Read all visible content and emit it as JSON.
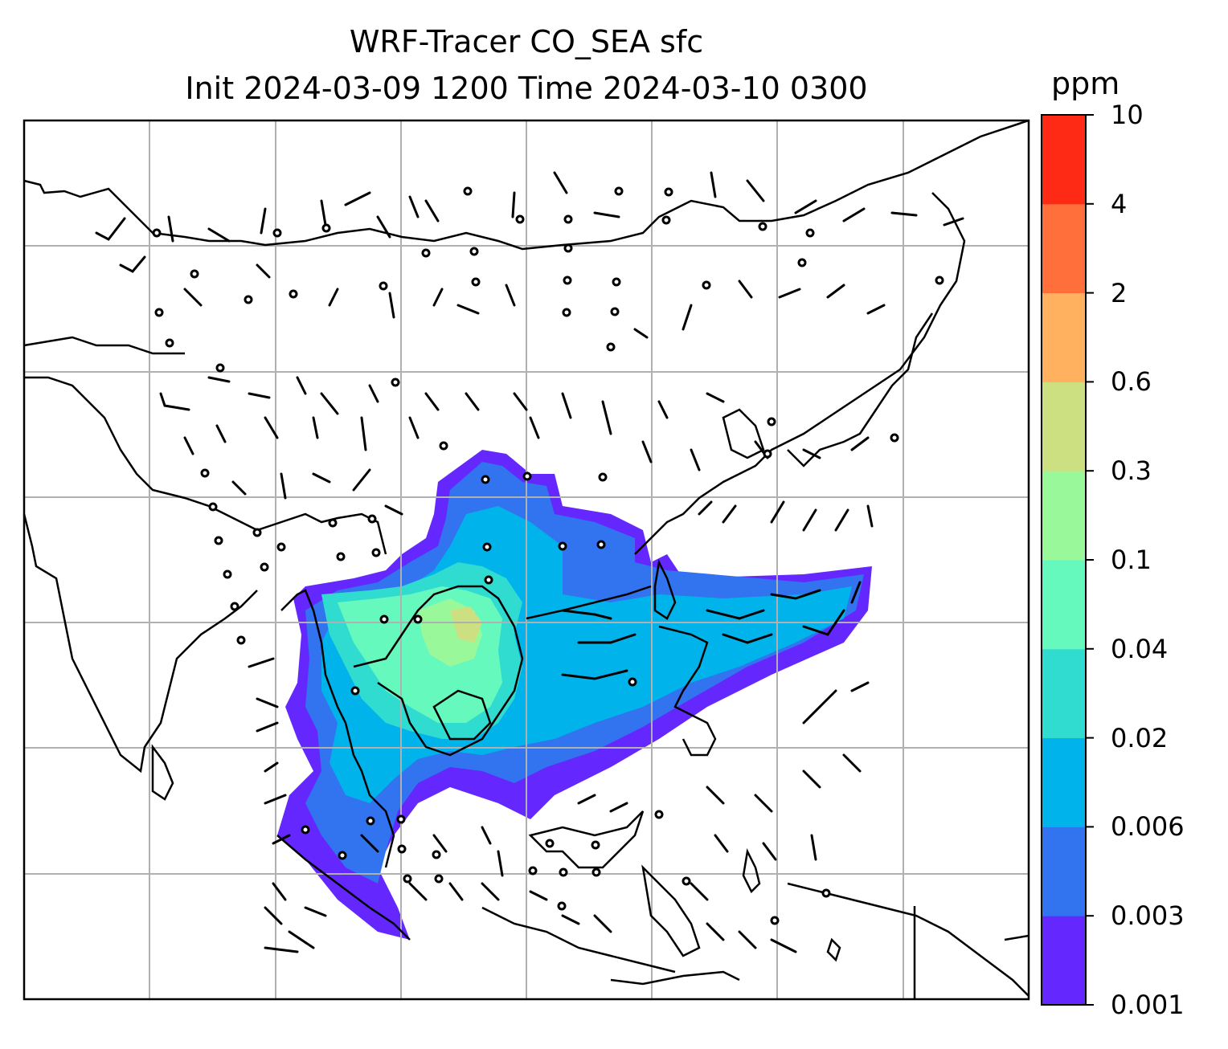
{
  "title": {
    "line1": "WRF-Tracer CO_SEA sfc",
    "line2": "Init 2024-03-09 1200 Time 2024-03-10 0300"
  },
  "colorbar": {
    "unit": "ppm",
    "ticks": [
      "0.001",
      "0.003",
      "0.006",
      "0.02",
      "0.04",
      "0.1",
      "0.3",
      "0.6",
      "2",
      "4",
      "10"
    ],
    "colors": [
      "#6428ff",
      "#3273f0",
      "#00b4eb",
      "#30dcd0",
      "#66f9bd",
      "#99f99a",
      "#cde081",
      "#ffb15f",
      "#ff6f3b",
      "#ff2a15"
    ]
  },
  "map": {
    "grid": "on",
    "coastlines": "on",
    "wind_barbs": "on",
    "field": "CO_SEA tracer plume over Southeast Asia"
  }
}
